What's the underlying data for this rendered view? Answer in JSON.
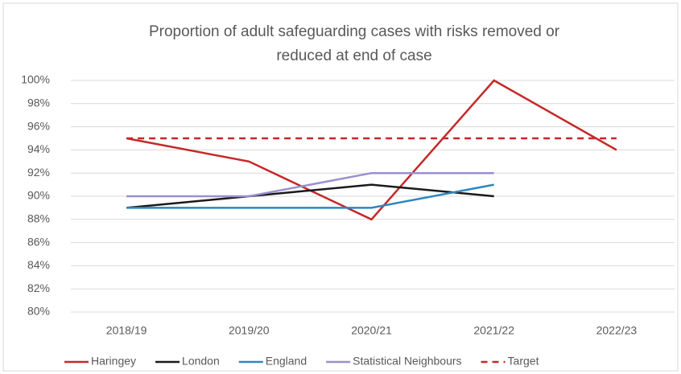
{
  "chart_data": {
    "type": "line",
    "title": "Proportion of adult safeguarding cases with risks removed or reduced at end of case",
    "title_lines": [
      "Proportion of adult safeguarding cases with risks removed or",
      "reduced at end of case"
    ],
    "categories": [
      "2018/19",
      "2019/20",
      "2020/21",
      "2021/22",
      "2022/23"
    ],
    "series": [
      {
        "name": "Haringey",
        "color": "#c62828",
        "values": [
          95,
          93,
          88,
          100,
          94
        ]
      },
      {
        "name": "London",
        "color": "#1a1a1a",
        "values": [
          89,
          90,
          91,
          90,
          null
        ]
      },
      {
        "name": "England",
        "color": "#2e86c1",
        "values": [
          89,
          89,
          89,
          91,
          null
        ]
      },
      {
        "name": "Statistical Neighbours",
        "color": "#9b8fcf",
        "values": [
          90,
          90,
          92,
          92,
          null
        ]
      },
      {
        "name": "Target",
        "color": "#c62828",
        "dashed": true,
        "values": [
          95,
          95,
          95,
          95,
          95
        ]
      }
    ],
    "ylim": [
      80,
      100
    ],
    "yticks": [
      {
        "value": 80,
        "label": "80%"
      },
      {
        "value": 82,
        "label": "82%"
      },
      {
        "value": 84,
        "label": "84%"
      },
      {
        "value": 86,
        "label": "86%"
      },
      {
        "value": 88,
        "label": "88%"
      },
      {
        "value": 90,
        "label": "90%"
      },
      {
        "value": 92,
        "label": "92%"
      },
      {
        "value": 94,
        "label": "94%"
      },
      {
        "value": 96,
        "label": "96%"
      },
      {
        "value": 98,
        "label": "98%"
      },
      {
        "value": 100,
        "label": "100%"
      }
    ],
    "grid": true,
    "legend": "bottom"
  }
}
